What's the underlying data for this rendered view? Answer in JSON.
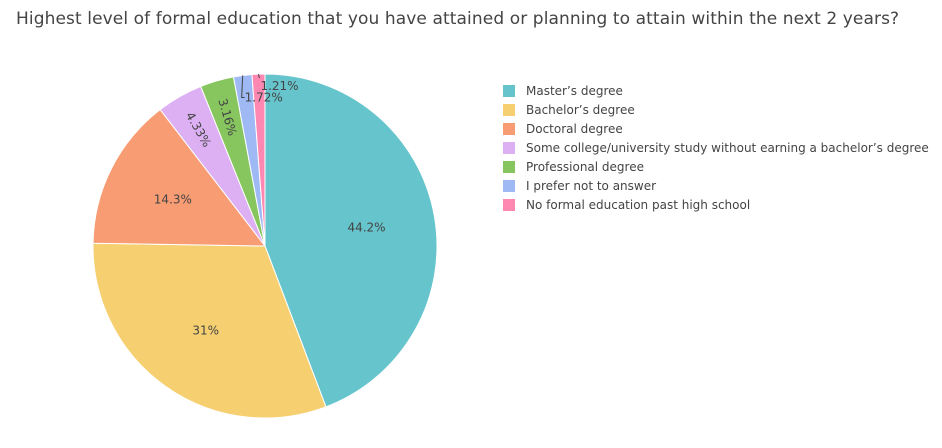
{
  "chart_data": {
    "type": "pie",
    "title": "Highest level of formal education that you have attained or planning to attain within the next 2 years?",
    "slices": [
      {
        "label": "Master’s degree",
        "value": 44.2,
        "text": "44.2%",
        "color": "#66C5CC"
      },
      {
        "label": "Bachelor’s degree",
        "value": 31,
        "text": "31%",
        "color": "#F6CF71"
      },
      {
        "label": "Doctoral degree",
        "value": 14.3,
        "text": "14.3%",
        "color": "#F89C74"
      },
      {
        "label": "Some college/university study without earning a bachelor’s degree",
        "value": 4.33,
        "text": "4.33%",
        "color": "#DCB0F2"
      },
      {
        "label": "Professional degree",
        "value": 3.16,
        "text": "3.16%",
        "color": "#87C55F"
      },
      {
        "label": "I prefer not to answer",
        "value": 1.72,
        "text": "1.72%",
        "color": "#9EB9F3"
      },
      {
        "label": "No formal education past high school",
        "value": 1.21,
        "text": "1.21%",
        "color": "#FE88B1"
      }
    ],
    "legend_position": "top-right",
    "direction": "clockwise",
    "start": "12 o'clock"
  }
}
